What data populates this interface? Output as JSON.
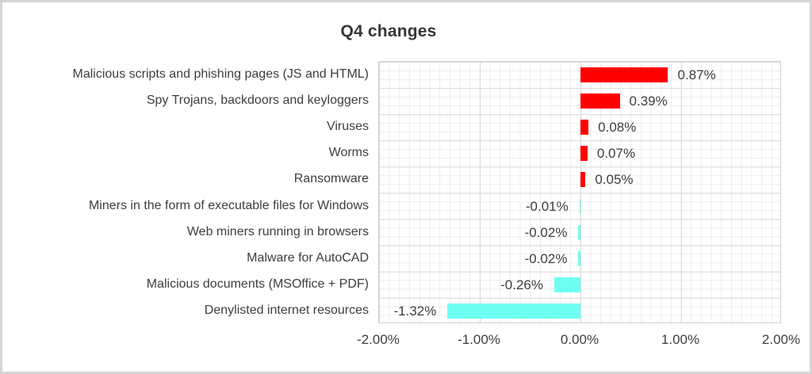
{
  "chart_data": {
    "type": "bar",
    "orientation": "horizontal",
    "title": "Q4 changes",
    "categories": [
      "Malicious scripts and phishing pages (JS and HTML)",
      "Spy Trojans, backdoors and keyloggers",
      "Viruses",
      "Worms",
      "Ransomware",
      "Miners in the form of executable files for Windows",
      "Web miners running in browsers",
      "Malware for AutoCAD",
      "Malicious documents (MSOffice + PDF)",
      "Denylisted internet resources"
    ],
    "values": [
      0.87,
      0.39,
      0.08,
      0.07,
      0.05,
      -0.01,
      -0.02,
      -0.02,
      -0.26,
      -1.32
    ],
    "value_labels": [
      "0.87%",
      "0.39%",
      "0.08%",
      "0.07%",
      "0.05%",
      "-0.01%",
      "-0.02%",
      "-0.02%",
      "-0.26%",
      "-1.32%"
    ],
    "x_ticks": [
      {
        "value": -2,
        "label": "-2.00%"
      },
      {
        "value": -1,
        "label": "-1.00%"
      },
      {
        "value": 0,
        "label": "0.00%"
      },
      {
        "value": 1,
        "label": "1.00%"
      },
      {
        "value": 2,
        "label": "2.00%"
      }
    ],
    "xlim": [
      -2,
      2
    ],
    "grid": true,
    "legend": "none",
    "colors": {
      "positive_bar": "#ff0000",
      "negative_bar": "#6efff3",
      "text": "#3d3d43",
      "grid_major": "#d9d9d9",
      "grid_minor": "#ededed"
    }
  }
}
